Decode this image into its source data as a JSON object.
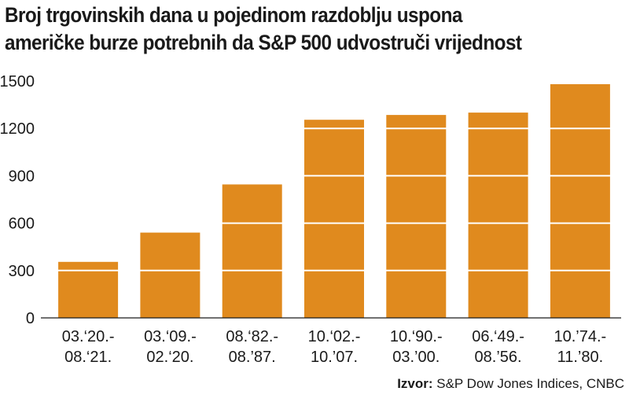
{
  "chart_data": {
    "type": "bar",
    "title_lines": [
      "Broj trgovinskih dana u pojedinom razdoblju uspona",
      "američke burze potrebnih da S&P 500 udvostruči vrijednost"
    ],
    "categories": [
      [
        "03.‘20.-",
        "08.‘21."
      ],
      [
        "03.‘09.-",
        "02.‘20."
      ],
      [
        "08.‘82.-",
        "08.’87."
      ],
      [
        "10.‘02.-",
        "10.’07."
      ],
      [
        "10.‘90.-",
        "03.’00."
      ],
      [
        "06.‘49.-",
        "08.’56."
      ],
      [
        "10.’74.-",
        "11.’80."
      ]
    ],
    "values": [
      355,
      540,
      845,
      1255,
      1285,
      1300,
      1480
    ],
    "yticks": [
      "0",
      "300",
      "600",
      "900",
      "1200",
      "1500"
    ],
    "ylim": [
      0,
      1500
    ],
    "xlabel": "",
    "ylabel": "",
    "grid": true,
    "bar_color": "#e08a1e",
    "grid_color": "#ffffff"
  },
  "source": {
    "label": "Izvor:",
    "text": " S&P Dow Jones Indices, CNBC"
  }
}
